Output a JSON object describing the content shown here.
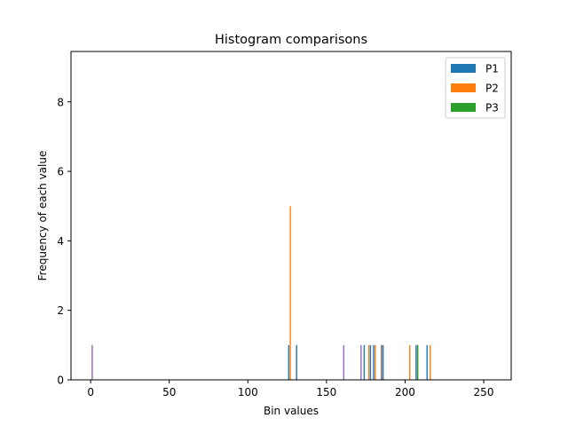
{
  "chart_data": {
    "type": "bar",
    "title": "Histogram comparisons",
    "xlabel": "Bin values",
    "ylabel": "Frequency of each value",
    "xlim": [
      -12.5,
      267.5
    ],
    "ylim": [
      0,
      9.45
    ],
    "xticks": [
      0,
      50,
      100,
      150,
      200,
      250
    ],
    "yticks": [
      0,
      2,
      4,
      6,
      8
    ],
    "grid": false,
    "legend_position": "top-right",
    "series": [
      {
        "name": "P1",
        "color": "#1f77b4",
        "x": [
          126,
          131,
          174,
          178,
          180,
          186,
          207,
          214
        ],
        "values": [
          1,
          1,
          1,
          1,
          1,
          1,
          1,
          1
        ]
      },
      {
        "name": "P2",
        "color": "#ff7f0e",
        "x": [
          127,
          127,
          177,
          181,
          203,
          208,
          216
        ],
        "values": [
          5,
          0,
          1,
          1,
          1,
          1,
          1
        ]
      },
      {
        "name": "P3",
        "color": "#2ca02c",
        "x": [
          208
        ],
        "values": [
          1
        ]
      },
      {
        "color": "#9467bd",
        "x": [
          1,
          161,
          172
        ],
        "values": [
          1,
          1,
          1
        ]
      },
      {
        "color": "#8c564b",
        "x": [
          185
        ],
        "values": [
          1
        ]
      }
    ]
  }
}
